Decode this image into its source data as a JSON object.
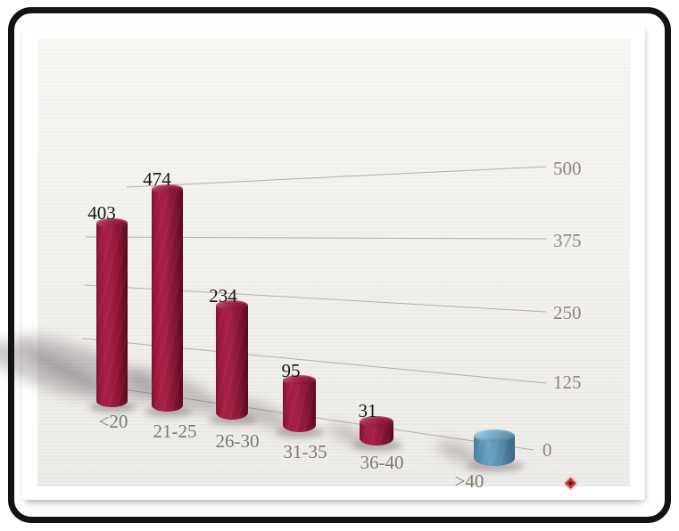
{
  "chart_data": {
    "type": "bar",
    "style": "3d-cylinder",
    "title": "",
    "xlabel": "",
    "ylabel": "",
    "categories": [
      "<20",
      "21-25",
      "26-30",
      "31-35",
      "36-40",
      ">40"
    ],
    "values": [
      403,
      474,
      234,
      95,
      31,
      null
    ],
    "value_labels": [
      "403",
      "474",
      "234",
      "95",
      "31"
    ],
    "ytick_labels": [
      "500",
      "375",
      "250",
      "125",
      "0"
    ],
    "ylim": [
      0,
      500
    ],
    "gridlines": true,
    "legend_position": "none",
    "colors": {
      "bar": "#a51e44",
      "last_bar": "#5f94b6",
      "value_label_text": "#161616",
      "category_text": "#7b7971",
      "axis_text": "#8b887e",
      "gridline": "#b3b0a8",
      "paper": "#f2f1ed",
      "frame": "#131313"
    }
  },
  "decorations": {
    "corner_marker": {
      "shape": "diamond",
      "color": "#c23b2e"
    }
  }
}
